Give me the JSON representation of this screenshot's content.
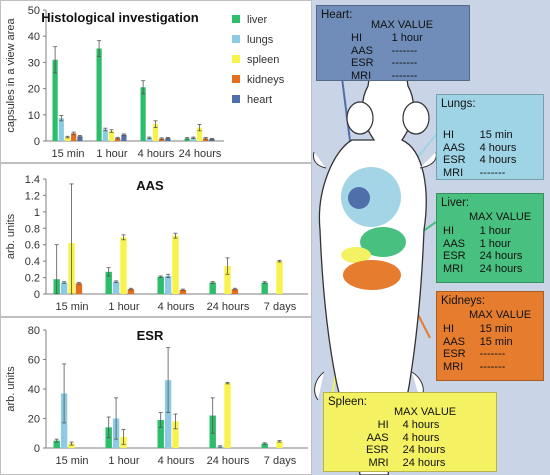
{
  "chart_data": [
    {
      "type": "bar",
      "title": "Histological investigation",
      "ylabel": "capsules in a view area",
      "ylim": [
        0,
        50
      ],
      "yticks": [
        0,
        10,
        20,
        30,
        40,
        50
      ],
      "categories": [
        "15 min",
        "1 hour",
        "4 hours",
        "24 hours"
      ],
      "legend_position": "top-right",
      "series": [
        {
          "name": "liver",
          "color": "#2ebd6a",
          "values": [
            31,
            35.3,
            20.5,
            1
          ],
          "errors": [
            5,
            3,
            2.5,
            0.3
          ]
        },
        {
          "name": "lungs",
          "color": "#8ccbe2",
          "values": [
            8.7,
            4.4,
            1.2,
            1.2
          ],
          "errors": [
            1,
            0.5,
            0.3,
            0.3
          ]
        },
        {
          "name": "spleen",
          "color": "#f7f34b",
          "values": [
            1.5,
            3.8,
            6.4,
            5.1
          ],
          "errors": [
            0.3,
            0.5,
            1.3,
            1.2
          ]
        },
        {
          "name": "kidneys",
          "color": "#e26e1e",
          "values": [
            2.9,
            1.1,
            0.9,
            1
          ],
          "errors": [
            0.5,
            0.3,
            0.3,
            0.3
          ]
        },
        {
          "name": "heart",
          "color": "#4f6fab",
          "values": [
            1.8,
            2.4,
            1.1,
            0.8
          ],
          "errors": [
            0.3,
            0.3,
            0.2,
            0.2
          ]
        }
      ]
    },
    {
      "type": "bar",
      "title": "AAS",
      "ylabel": "arb. units",
      "ylim": [
        0,
        1.4
      ],
      "yticks": [
        0,
        0.2,
        0.4,
        0.6,
        0.8,
        1,
        1.2,
        1.4
      ],
      "categories": [
        "15 min",
        "1 hour",
        "4 hours",
        "24 hours",
        "7 days"
      ],
      "series": [
        {
          "name": "liver",
          "color": "#2ebd6a",
          "values": [
            0.18,
            0.27,
            0.21,
            0.14,
            0.14
          ],
          "errors": [
            0.42,
            0.05,
            0.01,
            0.01,
            0.01
          ]
        },
        {
          "name": "lungs",
          "color": "#8ccbe2",
          "values": [
            0.14,
            0.15,
            0.22,
            0,
            0
          ],
          "errors": [
            0.01,
            0.01,
            0.02,
            0,
            0
          ]
        },
        {
          "name": "spleen",
          "color": "#f7f34b",
          "values": [
            0.62,
            0.69,
            0.71,
            0.34,
            0.4
          ],
          "errors": [
            0.72,
            0.03,
            0.03,
            0.1,
            0.01
          ]
        },
        {
          "name": "kidneys",
          "color": "#e26e1e",
          "values": [
            0.13,
            0.06,
            0.05,
            0.06,
            0
          ],
          "errors": [
            0.01,
            0.01,
            0.01,
            0.01,
            0
          ]
        },
        {
          "name": "heart",
          "color": "#4f6fab",
          "values": [
            0,
            0,
            0,
            0,
            0
          ],
          "errors": [
            0,
            0,
            0,
            0,
            0
          ]
        }
      ]
    },
    {
      "type": "bar",
      "title": "ESR",
      "ylabel": "arb. units",
      "ylim": [
        0,
        80
      ],
      "yticks": [
        0,
        20,
        40,
        60,
        80
      ],
      "categories": [
        "15 min",
        "1 hour",
        "4 hours",
        "24 hours",
        "7 days"
      ],
      "series": [
        {
          "name": "liver",
          "color": "#2ebd6a",
          "values": [
            5,
            14,
            19,
            22,
            3
          ],
          "errors": [
            1,
            7,
            5,
            12,
            0.5
          ]
        },
        {
          "name": "lungs",
          "color": "#8ccbe2",
          "values": [
            37,
            20,
            46,
            1,
            0
          ],
          "errors": [
            20,
            14,
            22,
            0.5,
            0
          ]
        },
        {
          "name": "spleen",
          "color": "#f7f34b",
          "values": [
            3,
            7.5,
            18,
            44,
            4.5
          ],
          "errors": [
            1,
            5,
            5,
            0.5,
            0.5
          ]
        },
        {
          "name": "kidneys",
          "color": "#e26e1e",
          "values": [
            0,
            0,
            0,
            0,
            0
          ],
          "errors": [
            0,
            0,
            0,
            0,
            0
          ]
        },
        {
          "name": "heart",
          "color": "#4f6fab",
          "values": [
            0,
            0,
            0,
            0,
            0
          ],
          "errors": [
            0,
            0,
            0,
            0,
            0
          ]
        }
      ]
    }
  ],
  "organs": {
    "heart": {
      "title": "Heart:",
      "header": "MAX VALUE",
      "color": "#6f8db8",
      "rows": [
        {
          "m": "HI",
          "v": "1 hour"
        },
        {
          "m": "AAS",
          "v": "-------"
        },
        {
          "m": "ESR",
          "v": "-------"
        },
        {
          "m": "MRI",
          "v": "-------"
        }
      ]
    },
    "lungs": {
      "title": "Lungs:",
      "header": "",
      "color": "#9fd3e6",
      "rows": [
        {
          "m": "HI",
          "v": "15 min"
        },
        {
          "m": "AAS",
          "v": "4  hours"
        },
        {
          "m": "ESR",
          "v": "4  hours"
        },
        {
          "m": "MRI",
          "v": "-------"
        }
      ]
    },
    "liver": {
      "title": "Liver:",
      "header": "MAX VALUE",
      "color": "#48c07f",
      "rows": [
        {
          "m": "HI",
          "v": "1  hour"
        },
        {
          "m": "AAS",
          "v": "1  hour"
        },
        {
          "m": "ESR",
          "v": "24 hours"
        },
        {
          "m": "MRI",
          "v": "24 hours"
        }
      ]
    },
    "kidneys": {
      "title": "Kidneys:",
      "header": "MAX VALUE",
      "color": "#e67c2e",
      "rows": [
        {
          "m": "HI",
          "v": "15 min"
        },
        {
          "m": "AAS",
          "v": "15 min"
        },
        {
          "m": "ESR",
          "v": "-------"
        },
        {
          "m": "MRI",
          "v": "-------"
        }
      ]
    },
    "spleen": {
      "title": "Spleen:",
      "header": "MAX VALUE",
      "color": "#f4f263",
      "rows": [
        {
          "m": "HI",
          "v": "4  hours"
        },
        {
          "m": "AAS",
          "v": "4  hours"
        },
        {
          "m": "ESR",
          "v": "24 hours"
        },
        {
          "m": "MRI",
          "v": "24 hours"
        }
      ]
    }
  }
}
